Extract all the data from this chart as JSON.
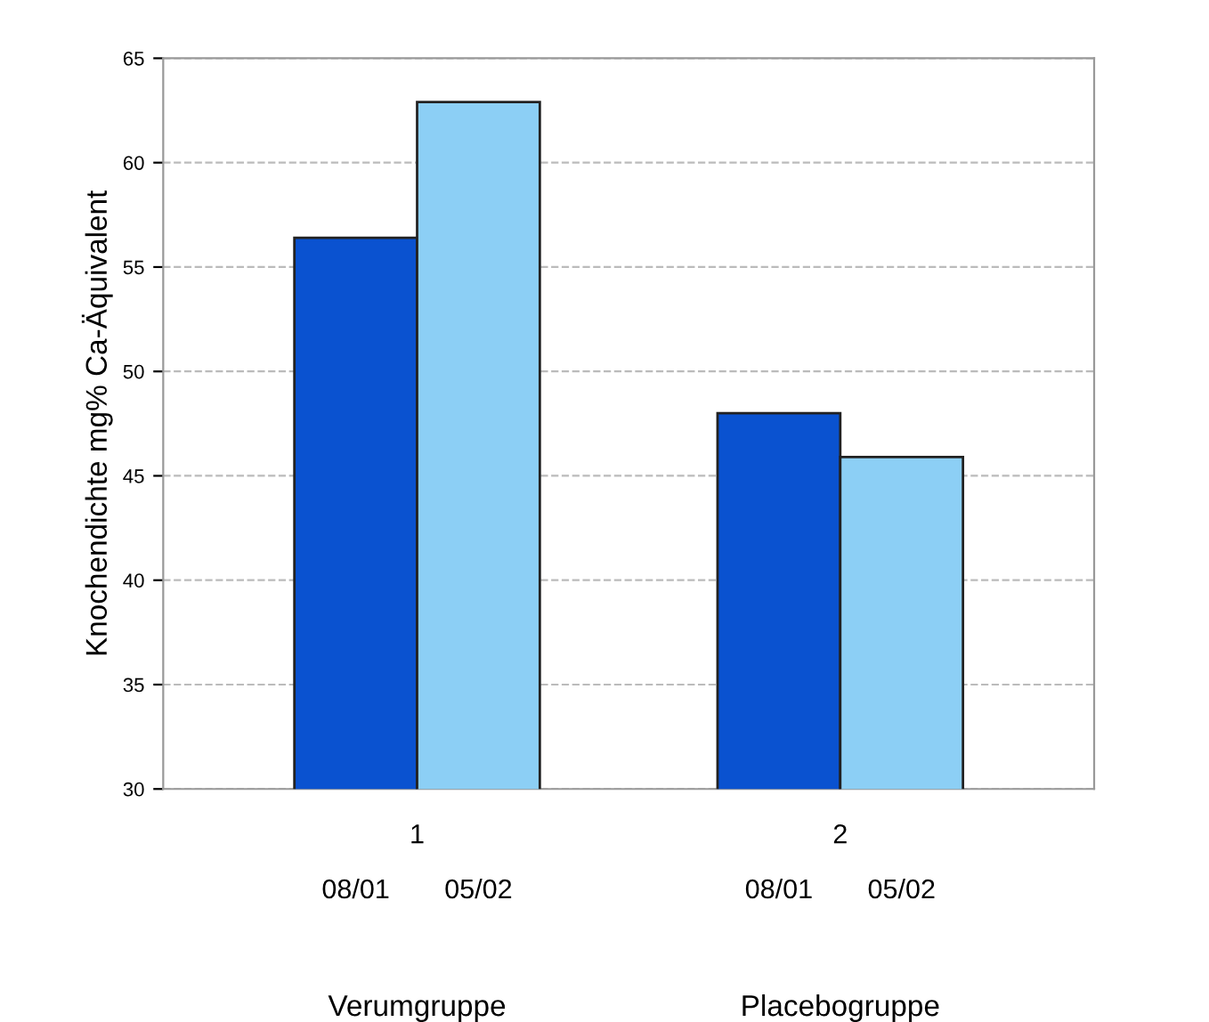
{
  "chart_data": {
    "type": "bar",
    "ylabel": "Knochendichte mg% Ca-Äquivalent",
    "categories": [
      "1",
      "2"
    ],
    "series": [
      {
        "name": "08/01",
        "color": "#0a52d0",
        "values": [
          56.4,
          48.0
        ]
      },
      {
        "name": "05/02",
        "color": "#8ccff5",
        "values": [
          62.9,
          45.9
        ]
      }
    ],
    "ylim": [
      30,
      65
    ],
    "yticks": [
      30,
      35,
      40,
      45,
      50,
      55,
      60,
      65
    ],
    "grid": "y",
    "legend": false,
    "annotations": [
      "Verumgruppe",
      "Placebogruppe"
    ]
  }
}
